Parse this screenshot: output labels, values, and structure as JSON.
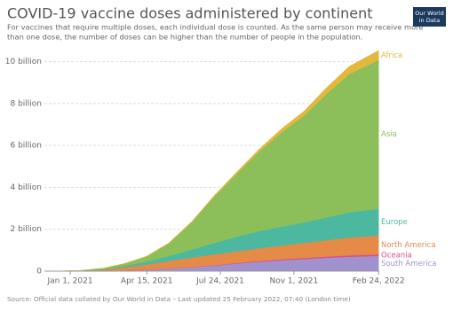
{
  "chart_data": {
    "type": "stacked-area",
    "title": "COVID-19 vaccine doses administered by continent",
    "subtitle": [
      "For vaccines that require multiple doses, each individual dose is counted. As the same person may receive more",
      "than one dose, the number of doses can be higher than the number of people in the population."
    ],
    "logo": [
      "Our World",
      "in Data"
    ],
    "source": "Source: Official data collated by Our World in Data – Last updated 25 February 2022, 07:40 (London time)",
    "x": [
      "2020-12-15",
      "2021-01-15",
      "2021-02-15",
      "2021-03-15",
      "2021-04-15",
      "2021-05-15",
      "2021-06-15",
      "2021-07-15",
      "2021-08-15",
      "2021-09-15",
      "2021-10-15",
      "2021-11-15",
      "2021-12-15",
      "2022-01-15",
      "2022-02-24"
    ],
    "xlim": [
      "2020-11-27",
      "2022-02-25"
    ],
    "xticks": [
      {
        "value": "2021-01-01",
        "label": "Jan 1, 2021"
      },
      {
        "value": "2021-04-15",
        "label": "Apr 15, 2021"
      },
      {
        "value": "2021-07-24",
        "label": "Jul 24, 2021"
      },
      {
        "value": "2021-11-01",
        "label": "Nov 1, 2021"
      },
      {
        "value": "2022-02-24",
        "label": "Feb 24, 2022"
      }
    ],
    "ylim": [
      0,
      11000000000
    ],
    "yticks": [
      0,
      {
        "value": 2000000000,
        "label": "2 billion"
      },
      {
        "value": 4000000000,
        "label": "4 billion"
      },
      {
        "value": 6000000000,
        "label": "6 billion"
      },
      {
        "value": 8000000000,
        "label": "8 billion"
      },
      {
        "value": 10000000000,
        "label": "10 billion"
      }
    ],
    "grid": true,
    "series": [
      {
        "name": "South America",
        "color": "#a192cf",
        "values": [
          0,
          1000000,
          10000000,
          30000000,
          70000000,
          120000000,
          190000000,
          270000000,
          360000000,
          450000000,
          520000000,
          580000000,
          640000000,
          690000000,
          730000000
        ]
      },
      {
        "name": "Oceania",
        "color": "#d6538b",
        "values": [
          0,
          0,
          1000000,
          2000000,
          4000000,
          7000000,
          12000000,
          18000000,
          26000000,
          36000000,
          46000000,
          55000000,
          62000000,
          68000000,
          72000000
        ]
      },
      {
        "name": "North America",
        "color": "#e58a47",
        "values": [
          1000000,
          15000000,
          60000000,
          150000000,
          250000000,
          360000000,
          450000000,
          510000000,
          560000000,
          610000000,
          660000000,
          720000000,
          780000000,
          850000000,
          900000000
        ]
      },
      {
        "name": "Europe",
        "color": "#4db8a0",
        "values": [
          0,
          8000000,
          30000000,
          70000000,
          130000000,
          240000000,
          380000000,
          540000000,
          700000000,
          820000000,
          900000000,
          980000000,
          1080000000,
          1200000000,
          1280000000
        ]
      },
      {
        "name": "Asia",
        "color": "#8cbf59",
        "values": [
          0,
          10000000,
          40000000,
          100000000,
          250000000,
          600000000,
          1300000000,
          2200000000,
          3000000000,
          3800000000,
          4500000000,
          5100000000,
          5900000000,
          6600000000,
          7100000000
        ]
      },
      {
        "name": "Africa",
        "color": "#e3b83d",
        "values": [
          0,
          0,
          1000000,
          3000000,
          8000000,
          15000000,
          25000000,
          40000000,
          70000000,
          110000000,
          160000000,
          210000000,
          280000000,
          360000000,
          450000000
        ]
      }
    ]
  }
}
